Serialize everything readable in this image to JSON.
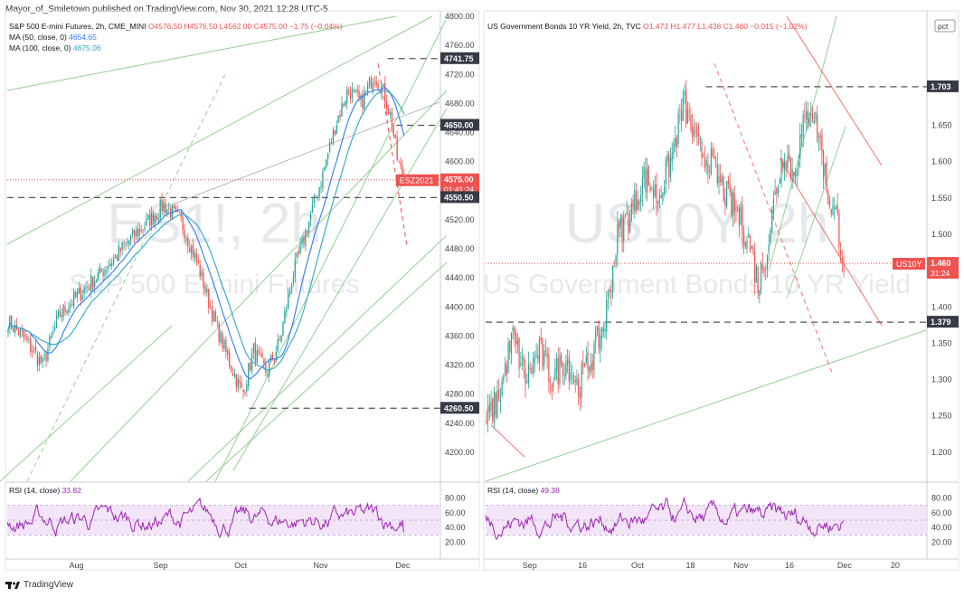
{
  "header": {
    "author": "Mayor_of_Smiletown",
    "published": "published on TradingView.com, Nov 30, 2021 12:28 UTC-5"
  },
  "footer": {
    "brand": "TradingView",
    "logo_icon": "tradingview-logo-icon"
  },
  "colors": {
    "up": "#26a69a",
    "down": "#ef5350",
    "ma50": "#3179f5",
    "ma100": "#2ea6c8",
    "channel": "#7cc47a",
    "rsi": "#9c27b0",
    "rsi_band": "#f3e5f7",
    "red_line": "#ef5350",
    "dashed": "#555555"
  },
  "chart_data": [
    {
      "type": "candlestick",
      "legend": {
        "title_left": "S&P 500 E-mini Futures, 2h, CME_MINI",
        "o": "O4576.50",
        "h": "H4576.50",
        "l": "L4562.00",
        "c": "C4575.00",
        "chg": "−1.75 (−0.04%)",
        "ma50_label": "MA (50, close, 0)",
        "ma50_value": "4654.65",
        "ma100_label": "MA (100, close, 0)",
        "ma100_value": "4675.06"
      },
      "watermark_symbol": "ES1!, 2h",
      "watermark_name": "S&P 500 E-mini Futures",
      "ylim": [
        4160,
        4800
      ],
      "y_ticks": [
        "4800.00",
        "4760.00",
        "4720.00",
        "4680.00",
        "4640.00",
        "4600.00",
        "4560.00",
        "4520.00",
        "4480.00",
        "4440.00",
        "4400.00",
        "4360.00",
        "4320.00",
        "4280.00",
        "4240.00",
        "4200.00"
      ],
      "y_tick_values": [
        4800,
        4760,
        4720,
        4680,
        4640,
        4600,
        4560,
        4520,
        4480,
        4440,
        4400,
        4360,
        4320,
        4280,
        4240,
        4200
      ],
      "x_ticks": [
        "Aug",
        "Sep",
        "Oct",
        "Nov",
        "Dec"
      ],
      "x_tick_pos": [
        0.16,
        0.355,
        0.54,
        0.725,
        0.915
      ],
      "price_labels": [
        {
          "text": "4741.75",
          "value": 4741.75,
          "kind": "level"
        },
        {
          "text": "4650.00",
          "value": 4650,
          "kind": "level"
        },
        {
          "text": "4575.00",
          "value": 4575,
          "kind": "current"
        },
        {
          "text": "4550.50",
          "value": 4550.5,
          "kind": "level"
        },
        {
          "text": "4260.50",
          "value": 4260.5,
          "kind": "level"
        }
      ],
      "current_tag": {
        "symbol": "ESZ2021",
        "countdown": "01:41:24"
      },
      "key_points": [
        [
          0,
          4380
        ],
        [
          0.04,
          4355
        ],
        [
          0.08,
          4320
        ],
        [
          0.12,
          4390
        ],
        [
          0.17,
          4420
        ],
        [
          0.22,
          4450
        ],
        [
          0.28,
          4490
        ],
        [
          0.33,
          4520
        ],
        [
          0.36,
          4540
        ],
        [
          0.4,
          4520
        ],
        [
          0.44,
          4460
        ],
        [
          0.48,
          4380
        ],
        [
          0.51,
          4330
        ],
        [
          0.545,
          4280
        ],
        [
          0.57,
          4340
        ],
        [
          0.6,
          4310
        ],
        [
          0.63,
          4350
        ],
        [
          0.66,
          4440
        ],
        [
          0.7,
          4520
        ],
        [
          0.73,
          4580
        ],
        [
          0.76,
          4650
        ],
        [
          0.79,
          4700
        ],
        [
          0.82,
          4680
        ],
        [
          0.85,
          4720
        ],
        [
          0.87,
          4700
        ],
        [
          0.89,
          4660
        ],
        [
          0.905,
          4600
        ],
        [
          0.92,
          4575
        ]
      ],
      "rsi": {
        "label": "RSI (14, close)",
        "value": "33.82",
        "ticks": [
          "80.00",
          "60.00",
          "40.00",
          "20.00"
        ],
        "tick_values": [
          80,
          60,
          40,
          20
        ],
        "band": [
          30,
          70
        ]
      }
    },
    {
      "type": "candlestick",
      "legend": {
        "title_left": "US Government Bonds 10 YR Yield, 2h, TVC",
        "o": "O1.473",
        "h": "H1.477",
        "l": "L1.438",
        "c": "C1.460",
        "chg": "−0.015 (−1.02%)"
      },
      "scale_badge": "pct",
      "watermark_symbol": "US10Y, 2h",
      "watermark_name": "US Government Bonds 10 YR Yield",
      "ylim": [
        1.16,
        1.8
      ],
      "y_ticks": [
        "1.650",
        "1.600",
        "1.550",
        "1.500",
        "1.450",
        "1.400",
        "1.350",
        "1.300",
        "1.250",
        "1.200"
      ],
      "y_tick_values": [
        1.65,
        1.6,
        1.55,
        1.5,
        1.45,
        1.4,
        1.35,
        1.3,
        1.25,
        1.2
      ],
      "x_ticks": [
        "Sep",
        "16",
        "Oct",
        "18",
        "Nov",
        "16",
        "Dec",
        "20"
      ],
      "x_tick_pos": [
        0.1,
        0.22,
        0.345,
        0.465,
        0.58,
        0.69,
        0.815,
        0.93
      ],
      "price_labels": [
        {
          "text": "1.703",
          "value": 1.703,
          "kind": "level"
        },
        {
          "text": "1.460",
          "value": 1.46,
          "kind": "current"
        },
        {
          "text": "1.379",
          "value": 1.379,
          "kind": "level"
        }
      ],
      "current_tag": {
        "symbol": "US10Y",
        "countdown": "31:24"
      },
      "key_points": [
        [
          0,
          1.24
        ],
        [
          0.03,
          1.28
        ],
        [
          0.06,
          1.36
        ],
        [
          0.09,
          1.3
        ],
        [
          0.12,
          1.34
        ],
        [
          0.15,
          1.3
        ],
        [
          0.18,
          1.33
        ],
        [
          0.21,
          1.29
        ],
        [
          0.24,
          1.33
        ],
        [
          0.27,
          1.38
        ],
        [
          0.3,
          1.5
        ],
        [
          0.33,
          1.53
        ],
        [
          0.36,
          1.58
        ],
        [
          0.39,
          1.55
        ],
        [
          0.42,
          1.6
        ],
        [
          0.45,
          1.68
        ],
        [
          0.48,
          1.62
        ],
        [
          0.51,
          1.6
        ],
        [
          0.54,
          1.56
        ],
        [
          0.57,
          1.53
        ],
        [
          0.6,
          1.49
        ],
        [
          0.62,
          1.43
        ],
        [
          0.64,
          1.48
        ],
        [
          0.66,
          1.56
        ],
        [
          0.68,
          1.62
        ],
        [
          0.7,
          1.58
        ],
        [
          0.72,
          1.64
        ],
        [
          0.74,
          1.68
        ],
        [
          0.76,
          1.63
        ],
        [
          0.78,
          1.55
        ],
        [
          0.8,
          1.52
        ],
        [
          0.815,
          1.46
        ]
      ],
      "rsi": {
        "label": "RSI (14, close)",
        "value": "49.38",
        "ticks": [
          "80.00",
          "60.00",
          "40.00",
          "20.00"
        ],
        "tick_values": [
          80,
          60,
          40,
          20
        ],
        "band": [
          30,
          70
        ]
      }
    }
  ]
}
